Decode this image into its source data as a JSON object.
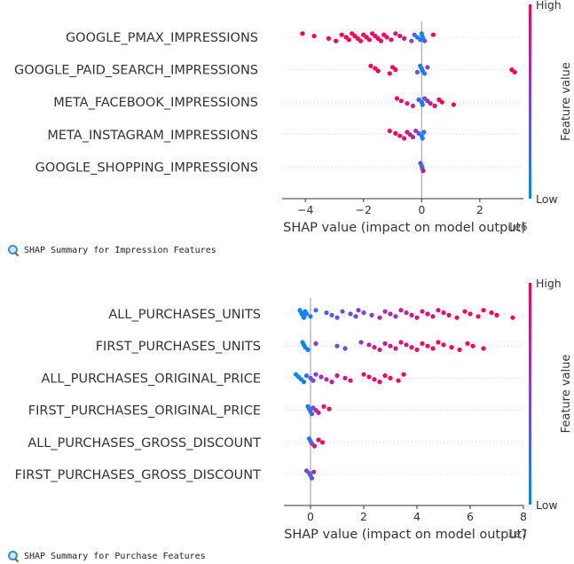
{
  "chart_data": [
    {
      "type": "scatter",
      "title": "",
      "xlabel": "SHAP value (impact on model output)",
      "offset_text": "1e6",
      "colorbar": {
        "label": "Feature value",
        "high": "High",
        "low": "Low"
      },
      "xlim": [
        -4.8,
        3.5
      ],
      "xticks": [
        -4,
        -2,
        0,
        2
      ],
      "xtick_labels": [
        "−4",
        "−2",
        "0",
        "2"
      ],
      "features": [
        "GOOGLE_PMAX_IMPRESSIONS",
        "GOOGLE_PAID_SEARCH_IMPRESSIONS",
        "META_FACEBOOK_IMPRESSIONS",
        "META_INSTAGRAM_IMPRESSIONS",
        "GOOGLE_SHOPPING_IMPRESSIONS"
      ],
      "points": [
        [
          [
            -4.1,
            1.0
          ],
          [
            -3.7,
            1.0
          ],
          [
            -3.2,
            1.0
          ],
          [
            -2.95,
            1.0
          ],
          [
            -2.75,
            1.0
          ],
          [
            -2.6,
            1.0
          ],
          [
            -2.5,
            1.0
          ],
          [
            -2.4,
            1.0
          ],
          [
            -2.3,
            1.0
          ],
          [
            -2.2,
            1.0
          ],
          [
            -2.1,
            1.0
          ],
          [
            -2.0,
            1.0
          ],
          [
            -1.9,
            0.95
          ],
          [
            -1.8,
            0.95
          ],
          [
            -1.7,
            1.0
          ],
          [
            -1.6,
            0.9
          ],
          [
            -1.5,
            1.0
          ],
          [
            -1.4,
            0.95
          ],
          [
            -1.3,
            1.0
          ],
          [
            -1.2,
            0.9
          ],
          [
            -1.05,
            0.9
          ],
          [
            -0.9,
            0.9
          ],
          [
            -0.75,
            0.85
          ],
          [
            -0.6,
            0.8
          ],
          [
            -0.35,
            0.5
          ],
          [
            -0.25,
            0.3
          ],
          [
            -0.15,
            0.1
          ],
          [
            -0.05,
            0.05
          ],
          [
            0,
            0.0
          ],
          [
            0.02,
            0.05
          ],
          [
            0.05,
            0.1
          ],
          [
            0.1,
            0.45
          ],
          [
            0.4,
            1.0
          ]
        ],
        [
          [
            -1.75,
            1.0
          ],
          [
            -1.6,
            1.0
          ],
          [
            -1.5,
            1.0
          ],
          [
            -1.1,
            1.0
          ],
          [
            -1.0,
            0.95
          ],
          [
            -0.9,
            1.0
          ],
          [
            -0.15,
            0.4
          ],
          [
            -0.05,
            0.2
          ],
          [
            0,
            0.0
          ],
          [
            0.03,
            0.1
          ],
          [
            0.1,
            0.15
          ],
          [
            0.2,
            0.55
          ],
          [
            3.1,
            1.0
          ],
          [
            3.2,
            1.0
          ]
        ],
        [
          [
            -0.85,
            0.95
          ],
          [
            -0.7,
            0.9
          ],
          [
            -0.5,
            0.85
          ],
          [
            -0.3,
            0.7
          ],
          [
            -0.1,
            0.3
          ],
          [
            0,
            0.1
          ],
          [
            0.03,
            0.05
          ],
          [
            0.1,
            0.35
          ],
          [
            0.2,
            0.7
          ],
          [
            0.3,
            0.8
          ],
          [
            0.45,
            0.9
          ],
          [
            0.6,
            0.95
          ],
          [
            0.7,
            1.0
          ],
          [
            1.1,
            1.0
          ]
        ],
        [
          [
            -1.1,
            1.0
          ],
          [
            -0.9,
            1.0
          ],
          [
            -0.75,
            0.95
          ],
          [
            -0.6,
            0.9
          ],
          [
            -0.5,
            0.85
          ],
          [
            -0.4,
            0.8
          ],
          [
            -0.3,
            0.75
          ],
          [
            -0.2,
            0.6
          ],
          [
            -0.1,
            0.4
          ],
          [
            0,
            0.1
          ],
          [
            0.03,
            0.05
          ],
          [
            0.08,
            0.2
          ]
        ],
        [
          [
            -0.04,
            0.6
          ],
          [
            0,
            0.0
          ],
          [
            0.02,
            0.3
          ],
          [
            0.05,
            0.9
          ]
        ]
      ]
    },
    {
      "type": "scatter",
      "title": "",
      "xlabel": "SHAP value (impact on model output)",
      "offset_text": "1e7",
      "colorbar": {
        "label": "Feature value",
        "high": "High",
        "low": "Low"
      },
      "xlim": [
        -1.0,
        8.0
      ],
      "xticks": [
        0,
        2,
        4,
        6,
        8
      ],
      "xtick_labels": [
        "0",
        "2",
        "4",
        "6",
        "8"
      ],
      "features": [
        "ALL_PURCHASES_UNITS",
        "FIRST_PURCHASES_UNITS",
        "ALL_PURCHASES_ORIGINAL_PRICE",
        "FIRST_PURCHASES_ORIGINAL_PRICE",
        "ALL_PURCHASES_GROSS_DISCOUNT",
        "FIRST_PURCHASES_GROSS_DISCOUNT"
      ],
      "points": [
        [
          [
            -0.4,
            0.0
          ],
          [
            -0.35,
            0.02
          ],
          [
            -0.3,
            0.0
          ],
          [
            -0.25,
            0.05
          ],
          [
            -0.2,
            0.05
          ],
          [
            -0.15,
            0.1
          ],
          [
            0.0,
            0.15
          ],
          [
            0.2,
            0.25
          ],
          [
            0.6,
            0.3
          ],
          [
            0.8,
            0.35
          ],
          [
            1.0,
            0.35
          ],
          [
            1.2,
            0.4
          ],
          [
            1.5,
            0.45
          ],
          [
            1.7,
            0.4
          ],
          [
            1.8,
            0.6
          ],
          [
            2.0,
            0.5
          ],
          [
            2.3,
            0.55
          ],
          [
            2.6,
            0.75
          ],
          [
            2.8,
            0.6
          ],
          [
            3.0,
            0.75
          ],
          [
            3.2,
            0.65
          ],
          [
            3.4,
            0.8
          ],
          [
            3.6,
            0.7
          ],
          [
            3.8,
            0.85
          ],
          [
            4.0,
            0.8
          ],
          [
            4.2,
            0.85
          ],
          [
            4.4,
            0.9
          ],
          [
            4.6,
            0.85
          ],
          [
            4.8,
            0.9
          ],
          [
            5.0,
            0.9
          ],
          [
            5.2,
            0.95
          ],
          [
            5.5,
            0.95
          ],
          [
            5.8,
            0.95
          ],
          [
            6.0,
            1.0
          ],
          [
            6.3,
            1.0
          ],
          [
            6.5,
            1.0
          ],
          [
            6.8,
            1.0
          ],
          [
            7.0,
            1.0
          ],
          [
            7.6,
            1.0
          ]
        ],
        [
          [
            -0.3,
            0.0
          ],
          [
            -0.25,
            0.05
          ],
          [
            -0.2,
            0.05
          ],
          [
            -0.1,
            0.1
          ],
          [
            0.2,
            0.6
          ],
          [
            1.0,
            0.5
          ],
          [
            1.3,
            0.4
          ],
          [
            1.9,
            0.6
          ],
          [
            2.2,
            0.7
          ],
          [
            2.4,
            0.75
          ],
          [
            2.6,
            0.8
          ],
          [
            2.8,
            0.8
          ],
          [
            3.0,
            0.85
          ],
          [
            3.2,
            0.85
          ],
          [
            3.4,
            0.9
          ],
          [
            3.6,
            0.85
          ],
          [
            3.8,
            0.9
          ],
          [
            4.0,
            0.9
          ],
          [
            4.2,
            0.9
          ],
          [
            4.4,
            0.95
          ],
          [
            4.6,
            0.95
          ],
          [
            4.8,
            0.95
          ],
          [
            5.0,
            1.0
          ],
          [
            5.3,
            1.0
          ],
          [
            5.6,
            1.0
          ],
          [
            5.9,
            1.0
          ],
          [
            6.1,
            1.0
          ],
          [
            6.5,
            1.0
          ]
        ],
        [
          [
            -0.55,
            0.0
          ],
          [
            -0.45,
            0.05
          ],
          [
            -0.35,
            0.05
          ],
          [
            -0.25,
            0.1
          ],
          [
            -0.15,
            0.15
          ],
          [
            0.0,
            0.4
          ],
          [
            0.1,
            0.5
          ],
          [
            0.2,
            0.55
          ],
          [
            0.4,
            0.6
          ],
          [
            0.6,
            0.7
          ],
          [
            0.8,
            0.75
          ],
          [
            1.0,
            0.8
          ],
          [
            1.3,
            0.8
          ],
          [
            1.5,
            0.85
          ],
          [
            2.0,
            0.9
          ],
          [
            2.2,
            0.9
          ],
          [
            2.4,
            0.95
          ],
          [
            2.6,
            0.95
          ],
          [
            2.8,
            0.95
          ],
          [
            3.0,
            1.0
          ],
          [
            3.3,
            1.0
          ],
          [
            3.5,
            1.0
          ]
        ],
        [
          [
            -0.1,
            0.1
          ],
          [
            -0.05,
            0.15
          ],
          [
            0.0,
            0.2
          ],
          [
            0.05,
            0.3
          ],
          [
            0.1,
            0.5
          ],
          [
            0.2,
            0.7
          ],
          [
            0.3,
            0.8
          ],
          [
            0.5,
            0.9
          ],
          [
            0.7,
            1.0
          ]
        ],
        [
          [
            -0.05,
            0.1
          ],
          [
            0.0,
            0.2
          ],
          [
            0.05,
            0.4
          ],
          [
            0.15,
            0.85
          ],
          [
            0.3,
            0.95
          ],
          [
            0.45,
            1.0
          ]
        ],
        [
          [
            -0.15,
            0.5
          ],
          [
            -0.05,
            0.3
          ],
          [
            0.0,
            0.2
          ],
          [
            0.05,
            0.4
          ],
          [
            0.12,
            0.8
          ]
        ]
      ]
    }
  ],
  "captions": {
    "impression": "SHAP Summary for Impression Features",
    "purchase": "SHAP Summary for Purchase Features"
  },
  "icons": {
    "caption_icon": "magnifying-glass-icon"
  },
  "colors": {
    "low": "#008bfb",
    "high": "#ff0052"
  }
}
